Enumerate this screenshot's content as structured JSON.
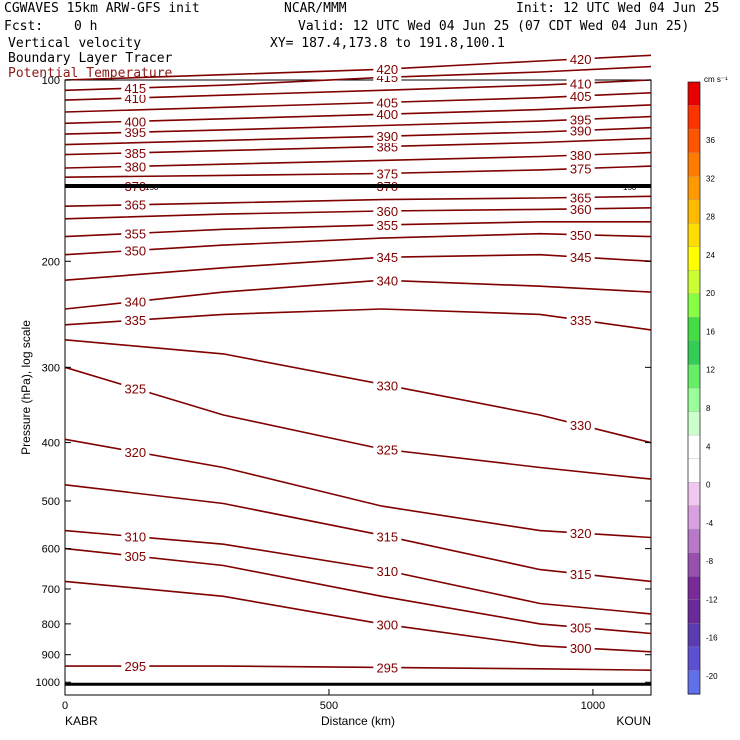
{
  "header": {
    "model": "CGWAVES 15km ARW-GFS init",
    "org": "NCAR/MMM",
    "init": "Init: 12 UTC Wed 04 Jun 25",
    "fcst_label": "Fcst:",
    "fcst_value": "0 h",
    "valid": "Valid: 12 UTC Wed 04 Jun 25 (07 CDT Wed 04 Jun 25)",
    "field1": "Vertical velocity",
    "xy": "XY= 187.4,173.8 to 191.8,100.1",
    "field2": "Boundary Layer Tracer",
    "field3": "Potential Temperature",
    "field3_color": "#8b1a1a"
  },
  "chart_data": {
    "type": "line",
    "x_title": "Distance (km)",
    "y_title": "Pressure (hPa), log scale",
    "x_ticks": [
      "0",
      "500",
      "1000"
    ],
    "x_tick_values": [
      0,
      500,
      1000
    ],
    "x_start_label": "KABR",
    "x_end_label": "KOUN",
    "xlim": [
      0,
      1110
    ],
    "ylim": [
      1050,
      100
    ],
    "y_scale": "log",
    "y_ticks": [
      "100",
      "200",
      "300",
      "400",
      "500",
      "600",
      "700",
      "800",
      "900",
      "1000"
    ],
    "y_tick_values": [
      100,
      200,
      300,
      400,
      500,
      600,
      700,
      800,
      900,
      1000
    ],
    "contour_color": "#800000",
    "series": [
      {
        "name": "295",
        "x": [
          0,
          300,
          600,
          900,
          1110
        ],
        "y": [
          940,
          940,
          945,
          950,
          955
        ]
      },
      {
        "name": "300",
        "x": [
          0,
          300,
          600,
          900,
          1110
        ],
        "y": [
          680,
          720,
          800,
          870,
          890
        ]
      },
      {
        "name": "305",
        "x": [
          0,
          300,
          600,
          900,
          1110
        ],
        "y": [
          600,
          640,
          720,
          800,
          830
        ]
      },
      {
        "name": "310",
        "x": [
          0,
          300,
          600,
          900,
          1110
        ],
        "y": [
          560,
          590,
          650,
          740,
          770
        ]
      },
      {
        "name": "315",
        "x": [
          0,
          300,
          600,
          900,
          1110
        ],
        "y": [
          470,
          505,
          570,
          650,
          680
        ]
      },
      {
        "name": "320",
        "x": [
          0,
          300,
          600,
          900,
          1110
        ],
        "y": [
          395,
          440,
          510,
          560,
          575
        ]
      },
      {
        "name": "325",
        "x": [
          0,
          300,
          600,
          900,
          1110
        ],
        "y": [
          300,
          360,
          410,
          440,
          460
        ]
      },
      {
        "name": "330",
        "x": [
          0,
          300,
          600,
          900,
          1110
        ],
        "y": [
          270,
          285,
          320,
          360,
          400
        ]
      },
      {
        "name": "335",
        "x": [
          0,
          300,
          600,
          900,
          1110
        ],
        "y": [
          255,
          245,
          240,
          245,
          260
        ]
      },
      {
        "name": "340",
        "x": [
          0,
          300,
          600,
          900,
          1110
        ],
        "y": [
          240,
          225,
          215,
          220,
          225
        ]
      },
      {
        "name": "345",
        "x": [
          0,
          300,
          600,
          900,
          1110
        ],
        "y": [
          215,
          205,
          197,
          195,
          200
        ]
      },
      {
        "name": "350",
        "x": [
          0,
          300,
          600,
          900,
          1110
        ],
        "y": [
          195,
          188,
          183,
          180,
          182
        ]
      },
      {
        "name": "355",
        "x": [
          0,
          300,
          600,
          900,
          1110
        ],
        "y": [
          182,
          177,
          174,
          172,
          172
        ]
      },
      {
        "name": "360",
        "x": [
          0,
          300,
          600,
          900,
          1110
        ],
        "y": [
          170,
          167,
          165,
          164,
          163
        ]
      },
      {
        "name": "365",
        "x": [
          0,
          300,
          600,
          900,
          1110
        ],
        "y": [
          162,
          160,
          158,
          157,
          156
        ]
      },
      {
        "name": "370",
        "x": [
          0,
          300,
          600,
          900,
          1110
        ],
        "y": [
          150,
          150,
          150,
          150,
          150
        ]
      },
      {
        "name": "375",
        "x": [
          0,
          300,
          600,
          900,
          1110
        ],
        "y": [
          145,
          144,
          143,
          141,
          139
        ]
      },
      {
        "name": "380",
        "x": [
          0,
          300,
          600,
          900,
          1110
        ],
        "y": [
          140,
          138,
          136,
          134,
          132
        ]
      },
      {
        "name": "385",
        "x": [
          0,
          300,
          600,
          900,
          1110
        ],
        "y": [
          133,
          131,
          129,
          127,
          125
        ]
      },
      {
        "name": "390",
        "x": [
          0,
          300,
          600,
          900,
          1110
        ],
        "y": [
          128,
          126,
          124,
          122,
          120
        ]
      },
      {
        "name": "395",
        "x": [
          0,
          300,
          600,
          900,
          1110
        ],
        "y": [
          123,
          121,
          119,
          117,
          115
        ]
      },
      {
        "name": "400",
        "x": [
          0,
          300,
          600,
          900,
          1110
        ],
        "y": [
          118,
          116,
          114,
          112,
          110
        ]
      },
      {
        "name": "405",
        "x": [
          0,
          300,
          600,
          900,
          1110
        ],
        "y": [
          113,
          111,
          109,
          107,
          105
        ]
      },
      {
        "name": "410",
        "x": [
          0,
          300,
          600,
          900,
          1110
        ],
        "y": [
          108,
          106,
          104,
          102,
          100
        ]
      },
      {
        "name": "415",
        "x": [
          0,
          300,
          600,
          900,
          1110
        ],
        "y": [
          104,
          102,
          99,
          97,
          95
        ]
      },
      {
        "name": "420",
        "x": [
          0,
          300,
          600,
          900,
          1110
        ],
        "y": [
          100,
          98,
          96,
          93,
          91
        ]
      }
    ],
    "tropopause_label": "150",
    "colorbar": {
      "unit": "cm s⁻¹",
      "labels": [
        "36",
        "32",
        "28",
        "24",
        "20",
        "16",
        "12",
        "8",
        "4",
        "0",
        "-4",
        "-8",
        "-12",
        "-16",
        "-20"
      ],
      "colors": [
        "#e60000",
        "#ff3300",
        "#ff5500",
        "#ff7a00",
        "#ff9900",
        "#ffbb00",
        "#ffdd00",
        "#ffff00",
        "#ccff33",
        "#88ff44",
        "#44dd44",
        "#33cc55",
        "#66ee66",
        "#99ff99",
        "#ccffcc",
        "#ffffff",
        "#ffffff",
        "#f0c8f0",
        "#d8a0e0",
        "#b878c8",
        "#9850b0",
        "#7a2a98",
        "#6a2a9a",
        "#5a3cb0",
        "#5c50d0",
        "#6070e8"
      ]
    }
  }
}
